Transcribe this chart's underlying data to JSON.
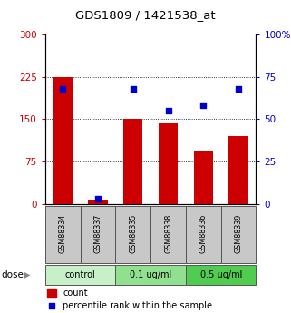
{
  "title": "GDS1809 / 1421538_at",
  "samples": [
    "GSM88334",
    "GSM88337",
    "GSM88335",
    "GSM88338",
    "GSM88336",
    "GSM88339"
  ],
  "counts": [
    225,
    8,
    150,
    143,
    95,
    120
  ],
  "percentiles": [
    68,
    3,
    68,
    55,
    58,
    68
  ],
  "groups": [
    {
      "label": "control",
      "indices": [
        0,
        1
      ],
      "color": "#c8f0c8"
    },
    {
      "label": "0.1 ug/ml",
      "indices": [
        2,
        3
      ],
      "color": "#90e090"
    },
    {
      "label": "0.5 ug/ml",
      "indices": [
        4,
        5
      ],
      "color": "#50cc50"
    }
  ],
  "dose_label": "dose",
  "bar_color": "#cc0000",
  "dot_color": "#0000cc",
  "left_ylim": [
    0,
    300
  ],
  "right_ylim": [
    0,
    100
  ],
  "left_yticks": [
    0,
    75,
    150,
    225,
    300
  ],
  "right_yticks": [
    0,
    25,
    50,
    75,
    100
  ],
  "left_yticklabels": [
    "0",
    "75",
    "150",
    "225",
    "300"
  ],
  "right_yticklabels": [
    "0",
    "25",
    "50",
    "75",
    "100%"
  ],
  "legend_count_label": "count",
  "legend_pct_label": "percentile rank within the sample",
  "background_color": "#ffffff",
  "sample_box_color": "#c8c8c8",
  "bar_width": 0.55,
  "dot_size": 18,
  "grid_yticks": [
    75,
    150,
    225
  ]
}
